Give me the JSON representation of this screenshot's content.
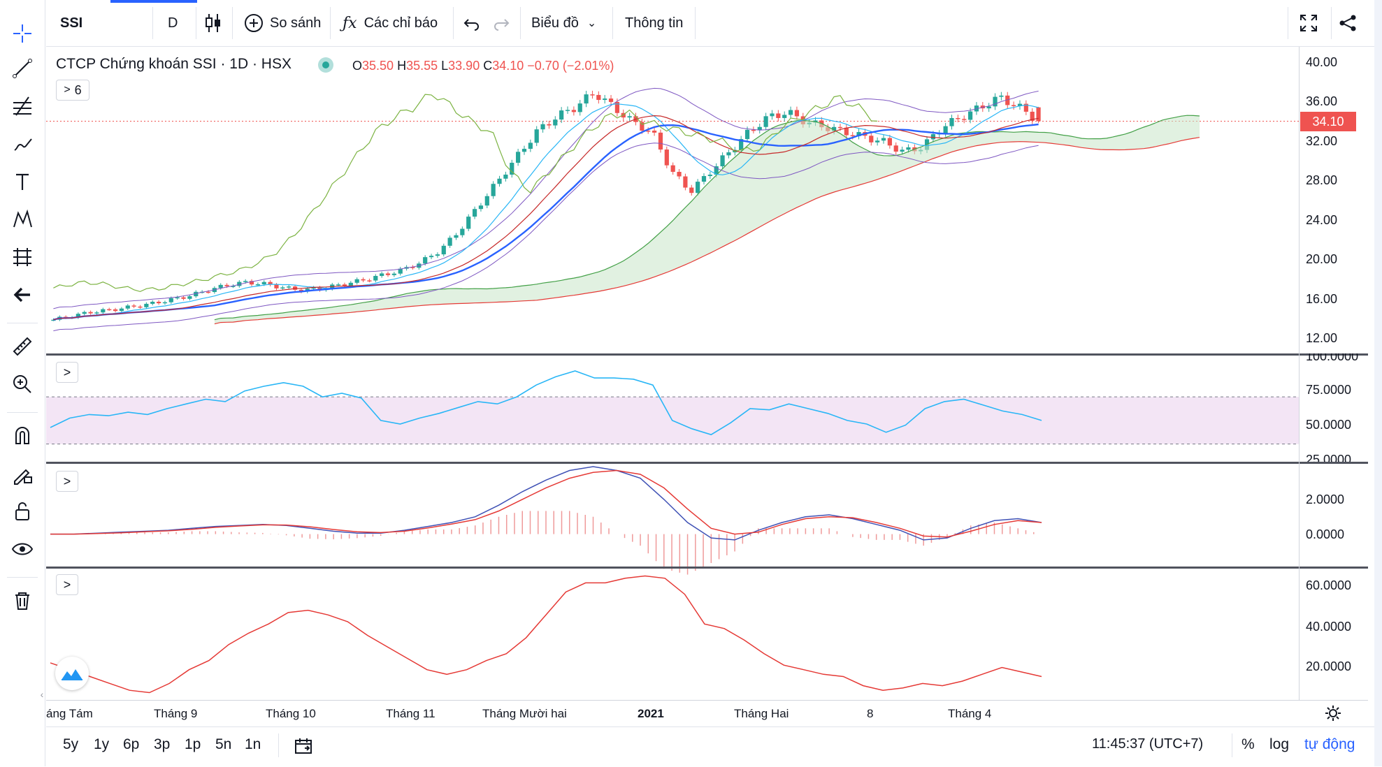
{
  "toolbar": {
    "symbol": "SSI",
    "interval": "D",
    "compare": "So sánh",
    "indicators": "Các chỉ báo",
    "chart_menu": "Biểu đồ",
    "info": "Thông tin"
  },
  "legend": {
    "title": "CTCP Chứng khoán SSI · 1D · HSX",
    "o_label": "O",
    "o_value": "35.50",
    "h_label": "H",
    "h_value": "35.55",
    "l_label": "L",
    "l_value": "33.90",
    "c_label": "C",
    "c_value": "34.10",
    "change": "−0.70 (−2.01%)",
    "indicators_count": "6"
  },
  "price_axis": {
    "ticks": [
      "40.00",
      "36.00",
      "32.00",
      "28.00",
      "24.00",
      "20.00",
      "16.00",
      "12.00"
    ],
    "last_price": "34.10"
  },
  "rsi_axis": {
    "ticks": [
      "100.0000",
      "75.0000",
      "50.0000",
      "25.0000"
    ]
  },
  "macd_axis": {
    "ticks": [
      "2.0000",
      "0.0000"
    ]
  },
  "pane4_axis": {
    "ticks": [
      "60.0000",
      "40.0000",
      "20.0000"
    ]
  },
  "time_axis": {
    "labels": [
      "áng Tám",
      "Tháng 9",
      "Tháng 10",
      "Tháng 11",
      "Tháng Mười hai",
      "2021",
      "Tháng Hai",
      "8",
      "Tháng 4"
    ]
  },
  "bottom": {
    "ranges": [
      "5y",
      "1y",
      "6p",
      "3p",
      "1p",
      "5n",
      "1n"
    ],
    "clock": "11:45:37 (UTC+7)",
    "percent": "%",
    "log": "log",
    "auto": "tự động"
  },
  "colors": {
    "up": "#26a69a",
    "down": "#ef5350",
    "accent": "#2962ff",
    "rsi_band": "#f3e5f5",
    "cloud_green": "#c8e6c9"
  },
  "chart_data": [
    {
      "type": "candlestick",
      "name": "SSI 1D",
      "ylim": [
        12,
        40
      ],
      "last": {
        "open": 35.5,
        "high": 35.55,
        "low": 33.9,
        "close": 34.1
      },
      "close_trend": [
        14.0,
        14.4,
        14.8,
        15.0,
        15.3,
        15.6,
        16.0,
        16.4,
        17.0,
        17.5,
        17.8,
        17.6,
        17.2,
        17.0,
        17.2,
        17.6,
        18.0,
        18.5,
        19.0,
        19.8,
        21.0,
        23.0,
        25.5,
        28.0,
        30.5,
        33.0,
        34.5,
        35.5,
        37.0,
        35.5,
        34.0,
        33.0,
        29.0,
        27.0,
        29.0,
        31.0,
        33.0,
        34.5,
        35.0,
        34.0,
        33.5,
        33.0,
        32.5,
        32.0,
        31.0,
        31.5,
        33.5,
        34.5,
        35.5,
        36.5,
        35.5,
        34.1
      ]
    },
    {
      "type": "line",
      "name": "RSI",
      "ylim": [
        25,
        100
      ],
      "values": [
        44,
        52,
        55,
        54,
        57,
        55,
        60,
        64,
        68,
        66,
        75,
        79,
        82,
        79,
        70,
        73,
        69,
        50,
        47,
        52,
        56,
        61,
        66,
        64,
        70,
        80,
        87,
        92,
        86,
        86,
        85,
        80,
        50,
        43,
        38,
        48,
        60,
        59,
        64,
        60,
        56,
        50,
        47,
        40,
        46,
        60,
        66,
        68,
        63,
        58,
        55,
        50
      ]
    },
    {
      "type": "line",
      "name": "MACD",
      "ylim": [
        -1.5,
        3.5
      ],
      "series": [
        {
          "values": [
            0,
            0,
            0.05,
            0.1,
            0.15,
            0.2,
            0.3,
            0.4,
            0.45,
            0.5,
            0.45,
            0.3,
            0.15,
            0.05,
            0.05,
            0.2,
            0.4,
            0.6,
            0.9,
            1.5,
            2.2,
            2.8,
            3.3,
            3.5,
            3.3,
            2.9,
            1.8,
            0.6,
            -0.2,
            -0.3,
            0.2,
            0.6,
            0.9,
            1.0,
            0.8,
            0.5,
            0.2,
            -0.3,
            -0.2,
            0.3,
            0.7,
            0.8,
            0.6
          ]
        },
        {
          "values": [
            0,
            0,
            0.03,
            0.07,
            0.12,
            0.17,
            0.25,
            0.35,
            0.42,
            0.48,
            0.47,
            0.38,
            0.24,
            0.12,
            0.08,
            0.15,
            0.32,
            0.52,
            0.75,
            1.2,
            1.8,
            2.4,
            2.9,
            3.2,
            3.3,
            3.1,
            2.4,
            1.3,
            0.3,
            0,
            0.1,
            0.5,
            0.8,
            0.9,
            0.85,
            0.6,
            0.3,
            -0.1,
            -0.15,
            0.15,
            0.5,
            0.7,
            0.6
          ]
        }
      ]
    },
    {
      "type": "line",
      "name": "",
      "ylim": [
        10,
        65
      ],
      "values": [
        25,
        22,
        19,
        16,
        13,
        12,
        16,
        22,
        26,
        33,
        38,
        42,
        47,
        48,
        46,
        43,
        37,
        32,
        27,
        22,
        20,
        22,
        26,
        29,
        36,
        46,
        56,
        60,
        60,
        62,
        63,
        62,
        55,
        42,
        40,
        35,
        29,
        24,
        22,
        20,
        19,
        15,
        13,
        14,
        16,
        15,
        17,
        20,
        23,
        21,
        19
      ]
    }
  ]
}
